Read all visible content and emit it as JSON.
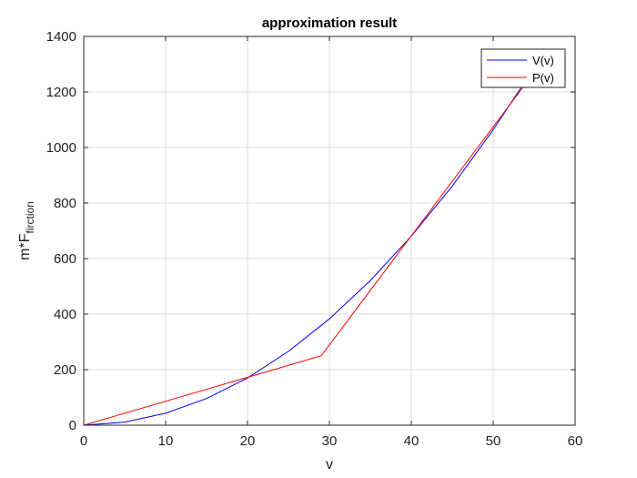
{
  "chart_data": {
    "type": "line",
    "title": "approximation result",
    "xlabel": "v",
    "ylabel_main": "m*F",
    "ylabel_sub": "firction",
    "xlim": [
      0,
      60
    ],
    "ylim": [
      0,
      1400
    ],
    "xticks": [
      0,
      10,
      20,
      30,
      40,
      50,
      60
    ],
    "yticks": [
      0,
      200,
      400,
      600,
      800,
      1000,
      1200,
      1400
    ],
    "grid": true,
    "legend_position": "top-right",
    "series": [
      {
        "name": "V(v)",
        "color": "#0000ff",
        "x": [
          0,
          5,
          10,
          15,
          20,
          25,
          30,
          35,
          40,
          45,
          50,
          55,
          56
        ],
        "y": [
          0,
          11,
          43,
          96,
          170,
          266,
          383,
          521,
          681,
          861,
          1064,
          1287,
          1334
        ]
      },
      {
        "name": "P(v)",
        "color": "#ff0000",
        "x": [
          0,
          29,
          56
        ],
        "y": [
          0,
          250,
          1310
        ]
      }
    ]
  }
}
